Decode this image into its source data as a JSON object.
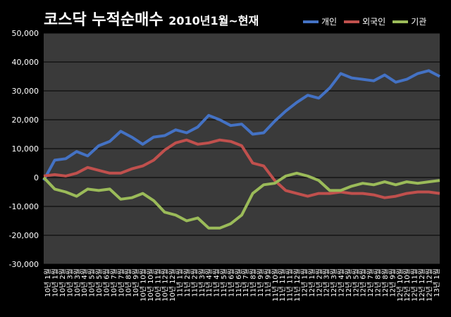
{
  "chart_data": {
    "type": "line",
    "title": "코스닥 누적순매수",
    "subtitle": "2010년1월~현재",
    "ylim": [
      -30000,
      50000
    ],
    "yticks": [
      -30000,
      -20000,
      -10000,
      0,
      10000,
      20000,
      30000,
      40000,
      50000
    ],
    "ytick_labels": [
      "-30,000",
      "-20,000",
      "-10,000",
      "0",
      "10,000",
      "20,000",
      "30,000",
      "40,000",
      "50,000"
    ],
    "grid": true,
    "legend_position": "top-right",
    "x": [
      "10년 1월",
      "10년 2월",
      "10년 3월",
      "10년 4월",
      "10년 5월",
      "10년 6월",
      "10년 7월",
      "10년 8월",
      "10년 9월",
      "10년 10월",
      "10년 11월",
      "10년 12월",
      "11년 1월",
      "11년 2월",
      "11년 3월",
      "11년 4월",
      "11년 5월",
      "11년 6월",
      "11년 7월",
      "11년 8월",
      "11년 9월",
      "11년 10월",
      "11년 11월",
      "11년 12월",
      "12년 1월",
      "12년 2월",
      "12년 3월",
      "12년 4월",
      "12년 5월",
      "12년 6월",
      "12년 7월",
      "12년 8월",
      "12년 9월",
      "12년 10월",
      "12년 11월",
      "12년 12월",
      "13년 1월"
    ],
    "xtick_labels": [
      "10년 1월",
      "10년 1월",
      "10년 2월",
      "10년 3월",
      "10년 3월",
      "10년 4월",
      "10년 5월",
      "10년 5월",
      "10년 6월",
      "10년 7월",
      "10년 7월",
      "10년 8월",
      "10년 9월",
      "10년 10월",
      "10년 10월",
      "10년 11월",
      "10년 12월",
      "10년 12월",
      "11년 1월",
      "11년 2월",
      "11년 2월",
      "11년 3월",
      "11년 4월",
      "11년 4월",
      "11년 5월",
      "11년 6월",
      "11년 6월",
      "11년 7월",
      "11년 8월",
      "11년 9월",
      "11년 9월",
      "11년 10월",
      "11년 11월",
      "11년 11월",
      "11년 12월",
      "12년 1월",
      "12년 1월",
      "12년 2월",
      "12년 3월",
      "12년 3월",
      "12년 4월",
      "12년 5월",
      "12년 5월",
      "12년 6월",
      "12년 7월",
      "12년 8월",
      "12년 8월",
      "12년 9월",
      "12년 10월",
      "12년 10월",
      "12년 11월",
      "12년 12월",
      "12년 12월",
      "13년 1월"
    ],
    "series": [
      {
        "name": "개인",
        "color": "#4472C4",
        "values": [
          -1000,
          6000,
          6500,
          9000,
          7500,
          11000,
          12500,
          16000,
          14000,
          11500,
          14000,
          14500,
          16500,
          15500,
          17500,
          21500,
          20000,
          18000,
          18500,
          15000,
          15500,
          19500,
          23000,
          26000,
          28500,
          27500,
          31000,
          36000,
          34500,
          34000,
          33500,
          35500,
          33000,
          34000,
          36000,
          37000,
          35000
        ]
      },
      {
        "name": "외국인",
        "color": "#C0504D",
        "values": [
          500,
          1000,
          500,
          1500,
          3500,
          2500,
          1500,
          1500,
          3000,
          4000,
          6000,
          9500,
          12000,
          13000,
          11500,
          12000,
          13000,
          12500,
          11000,
          5000,
          4000,
          -1000,
          -4500,
          -5500,
          -6500,
          -5500,
          -5500,
          -5000,
          -5500,
          -5500,
          -6000,
          -7000,
          -6500,
          -5500,
          -5000,
          -5000,
          -5500
        ]
      },
      {
        "name": "기관",
        "color": "#9BBB59",
        "values": [
          0,
          -4000,
          -5000,
          -6500,
          -4000,
          -4500,
          -4000,
          -7500,
          -7000,
          -5500,
          -8000,
          -12000,
          -13000,
          -15000,
          -14000,
          -17500,
          -17500,
          -16000,
          -13000,
          -5500,
          -2500,
          -2000,
          500,
          1500,
          500,
          -1000,
          -4500,
          -4500,
          -3000,
          -2000,
          -2500,
          -1500,
          -2500,
          -1500,
          -2000,
          -1500,
          -1000
        ]
      }
    ]
  }
}
